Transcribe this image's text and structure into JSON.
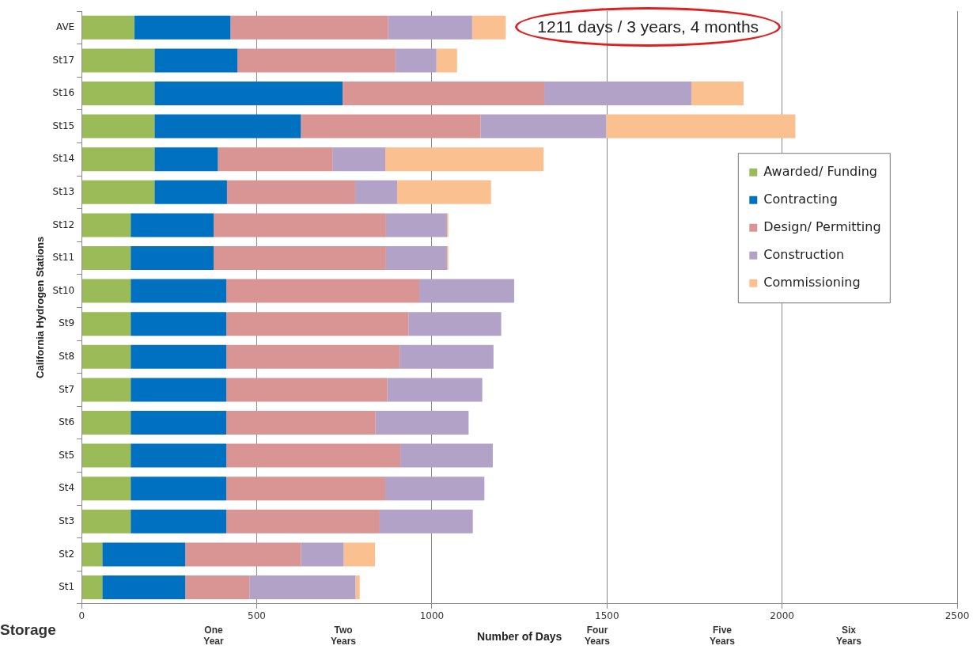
{
  "chart_data": {
    "type": "bar",
    "orientation": "horizontal",
    "stacked": true,
    "xlabel": "Number of Days",
    "ylabel": "California Hydrogen Stations",
    "categories": [
      "AVE",
      "St17",
      "St16",
      "St15",
      "St14",
      "St13",
      "St12",
      "St11",
      "St10",
      "St9",
      "St8",
      "St7",
      "St6",
      "St5",
      "St4",
      "St3",
      "St2",
      "St1"
    ],
    "series": [
      {
        "name": "Awarded/ Funding",
        "color": "#9bbb59",
        "values": [
          150,
          208,
          208,
          208,
          208,
          208,
          140,
          140,
          140,
          140,
          140,
          140,
          140,
          140,
          140,
          140,
          59,
          59
        ]
      },
      {
        "name": "Contracting",
        "color": "#0070c0",
        "values": [
          275,
          237,
          537,
          418,
          181,
          207,
          237,
          237,
          273,
          273,
          273,
          273,
          273,
          273,
          273,
          273,
          237,
          237
        ]
      },
      {
        "name": "Design/ Permitting",
        "color": "#d99594",
        "values": [
          450,
          451,
          576,
          513,
          327,
          366,
          492,
          492,
          551,
          520,
          495,
          460,
          426,
          497,
          454,
          438,
          330,
          183
        ]
      },
      {
        "name": "Construction",
        "color": "#b3a2c7",
        "values": [
          240,
          117,
          420,
          359,
          151,
          120,
          174,
          174,
          271,
          265,
          268,
          271,
          266,
          264,
          283,
          266,
          122,
          303
        ]
      },
      {
        "name": "Commissioning",
        "color": "#fac090",
        "values": [
          96,
          59,
          149,
          540,
          452,
          268,
          4,
          4,
          null,
          null,
          null,
          null,
          null,
          null,
          null,
          null,
          90,
          12
        ]
      }
    ],
    "xlim": [
      0,
      2500
    ],
    "xticks": [
      0,
      500,
      1000,
      1500,
      2000,
      2500
    ],
    "grid": "x",
    "legend": "right",
    "annotations": [
      {
        "text": "1211 days / 3 years, 4 months",
        "x": 1211,
        "y": "AVE"
      },
      "Storage",
      "One Year",
      "Two Years",
      "Four Years",
      "Five Years",
      "Six Years"
    ]
  }
}
